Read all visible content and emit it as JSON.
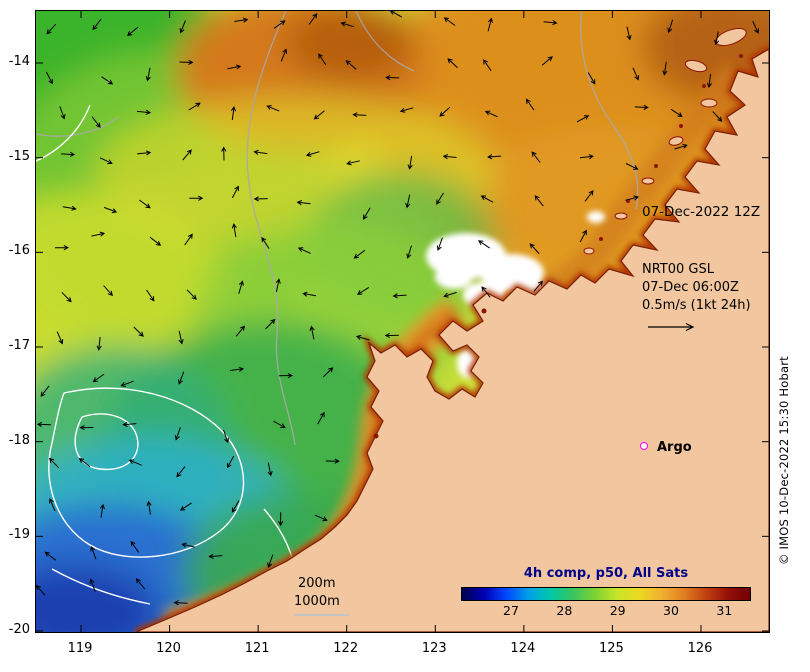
{
  "map": {
    "timestamp": "07-Dec-2022 12Z",
    "gsl": {
      "line1": "NRT00 GSL",
      "line2": "07-Dec 06:00Z",
      "line3": "0.5m/s (1kt 24h)"
    },
    "argo_label": "Argo",
    "argo_color": "#ff00ff",
    "depth_labels": {
      "d200": "200m",
      "d1000": "1000m"
    }
  },
  "colorbar": {
    "title": "4h comp, p50, All Sats",
    "title_color": "#00008b",
    "ticks": [
      "27",
      "28",
      "29",
      "30",
      "31"
    ],
    "gradient": [
      "#000050",
      "#0000b4",
      "#0048ff",
      "#00a0e8",
      "#00c8a8",
      "#38c45c",
      "#7ed234",
      "#c8e428",
      "#ecd922",
      "#f0b030",
      "#e08020",
      "#c04010",
      "#971008",
      "#700000"
    ]
  },
  "axes": {
    "lat_ticks": [
      "-14",
      "-15",
      "-16",
      "-17",
      "-18",
      "-19",
      "-20"
    ],
    "lon_ticks": [
      "119",
      "120",
      "121",
      "122",
      "123",
      "124",
      "125",
      "126"
    ],
    "lat_extent": [
      -14,
      -20
    ],
    "lon_extent": [
      119,
      126
    ]
  },
  "credit": "© IMOS 10-Dec-2022 15:30 Hobart"
}
